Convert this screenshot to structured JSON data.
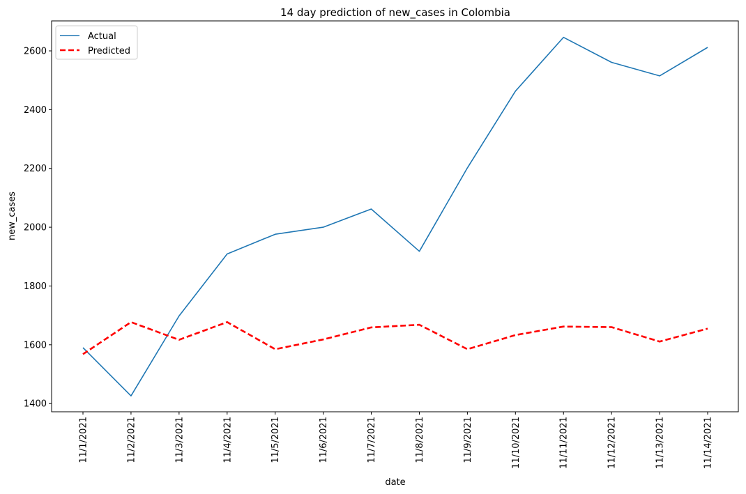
{
  "chart_data": {
    "type": "line",
    "title": "14 day prediction of new_cases in Colombia",
    "xlabel": "date",
    "ylabel": "new_cases",
    "x": [
      "11/1/2021",
      "11/2/2021",
      "11/3/2021",
      "11/4/2021",
      "11/5/2021",
      "11/6/2021",
      "11/7/2021",
      "11/8/2021",
      "11/9/2021",
      "11/10/2021",
      "11/11/2021",
      "11/12/2021",
      "11/13/2021",
      "11/14/2021"
    ],
    "ylim": [
      1372,
      2702
    ],
    "yticks": [
      1400,
      1600,
      1800,
      2000,
      2200,
      2400,
      2600
    ],
    "grid": false,
    "legend_position": "top-left",
    "series": [
      {
        "name": "Actual",
        "color": "#1f77b4",
        "style": "solid",
        "values": [
          1590,
          1426,
          1698,
          1909,
          1976,
          2000,
          2062,
          1918,
          2202,
          2463,
          2646,
          2561,
          2515,
          2612
        ]
      },
      {
        "name": "Predicted",
        "color": "#ff0000",
        "style": "dashed",
        "values": [
          1568,
          1677,
          1617,
          1677,
          1585,
          1618,
          1659,
          1668,
          1585,
          1633,
          1662,
          1660,
          1611,
          1655
        ]
      }
    ]
  }
}
